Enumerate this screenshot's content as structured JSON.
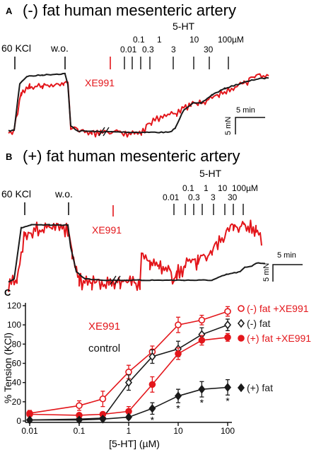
{
  "panels": {
    "a": {
      "letter": "A",
      "title": "(-) fat human mesenteric artery",
      "kcl_label": "60 KCl",
      "wo_label": "w.o.",
      "drug_label": "XE991",
      "agonist_label": "5-HT",
      "doses": [
        "0.01",
        "0.1",
        "0.3",
        "1",
        "3",
        "10",
        "30",
        "100µM"
      ],
      "scale_time": "5 min",
      "scale_force": "5 mN"
    },
    "b": {
      "letter": "B",
      "title": "(+) fat human mesenteric artery",
      "kcl_label": "60 KCl",
      "wo_label": "w.o.",
      "drug_label": "XE991",
      "agonist_label": "5-HT",
      "doses": [
        "0.01",
        "0.1",
        "0.3",
        "1",
        "3",
        "10",
        "30",
        "100µM"
      ],
      "scale_time": "5 min",
      "scale_force": "5 mN"
    },
    "c": {
      "letter": "C"
    }
  },
  "colors": {
    "treated": "#e3161b",
    "control": "#1a1a1a"
  },
  "chart_data": {
    "type": "line",
    "xlabel": "[5-HT] (µM)",
    "ylabel": "% Tension (KCl)",
    "x_scale": "log",
    "xlim": [
      0.01,
      100
    ],
    "ylim": [
      0,
      120
    ],
    "x_ticks": [
      "0.01",
      "0.1",
      "1",
      "10",
      "100"
    ],
    "y_ticks": [
      "0",
      "20",
      "40",
      "60",
      "80",
      "100",
      "120"
    ],
    "annotation_drug": "XE991",
    "annotation_control": "control",
    "x": [
      0.01,
      0.1,
      0.3,
      1,
      3,
      10,
      30,
      100
    ],
    "series": [
      {
        "name": "(-) fat +XE991",
        "color": "#e3161b",
        "marker": "open-circle",
        "values": [
          8,
          16,
          23,
          51,
          72,
          100,
          105,
          114
        ],
        "errors": [
          3,
          5,
          8,
          7,
          6,
          8,
          5,
          5
        ]
      },
      {
        "name": "(-) fat",
        "color": "#1a1a1a",
        "marker": "open-diamond",
        "values": [
          1,
          2,
          3,
          40,
          67,
          75,
          90,
          100
        ],
        "errors": [
          0.5,
          1,
          1,
          8,
          7,
          8,
          7,
          6
        ]
      },
      {
        "name": "(+) fat +XE991",
        "color": "#e3161b",
        "marker": "filled-circle",
        "values": [
          7,
          6,
          7,
          10,
          38,
          70,
          84,
          87
        ],
        "errors": [
          2,
          2,
          2,
          5,
          8,
          6,
          5,
          4
        ]
      },
      {
        "name": "(+) fat",
        "color": "#1a1a1a",
        "marker": "filled-diamond",
        "values": [
          1,
          1,
          2,
          4,
          13,
          26,
          33,
          35
        ],
        "errors": [
          0.5,
          0.5,
          1,
          2,
          6,
          7,
          8,
          8
        ]
      }
    ],
    "significance": {
      "marker": "*",
      "x": [
        3,
        10,
        30,
        100
      ]
    }
  }
}
